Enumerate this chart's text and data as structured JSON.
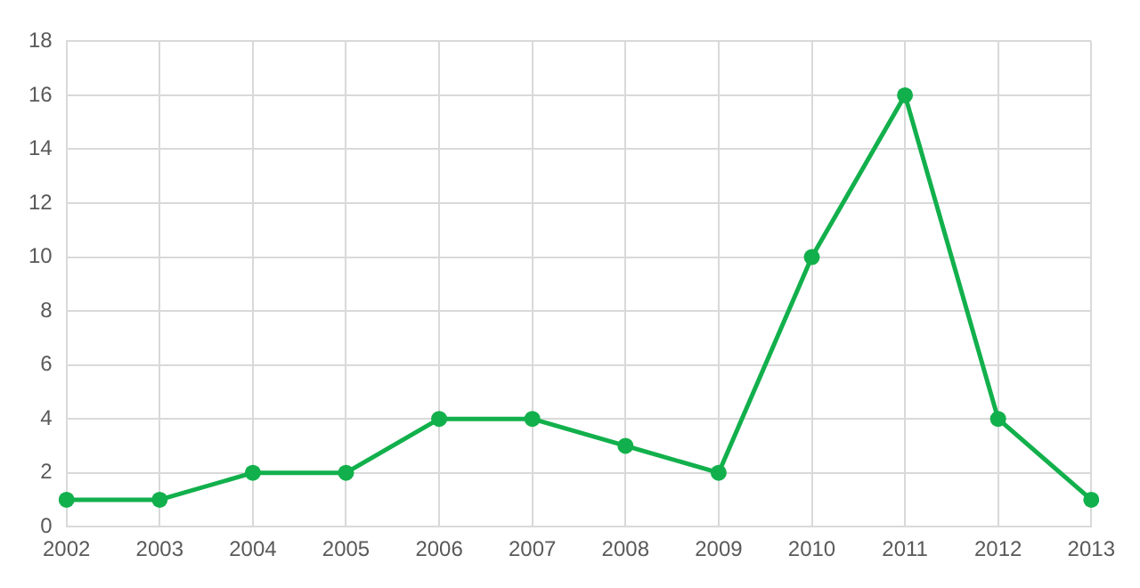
{
  "chart_data": {
    "type": "line",
    "categories": [
      "2002",
      "2003",
      "2004",
      "2005",
      "2006",
      "2007",
      "2008",
      "2009",
      "2010",
      "2011",
      "2012",
      "2013"
    ],
    "series": [
      {
        "color": "#12b04c",
        "values": [
          1,
          1,
          2,
          2,
          4,
          4,
          3,
          2,
          10,
          16,
          4,
          1
        ]
      }
    ],
    "ylim": [
      0,
      18
    ],
    "yticks": [
      0,
      2,
      4,
      6,
      8,
      10,
      12,
      14,
      16,
      18
    ],
    "grid": true,
    "legend": false,
    "marker": "circle",
    "line_style": "solid"
  }
}
